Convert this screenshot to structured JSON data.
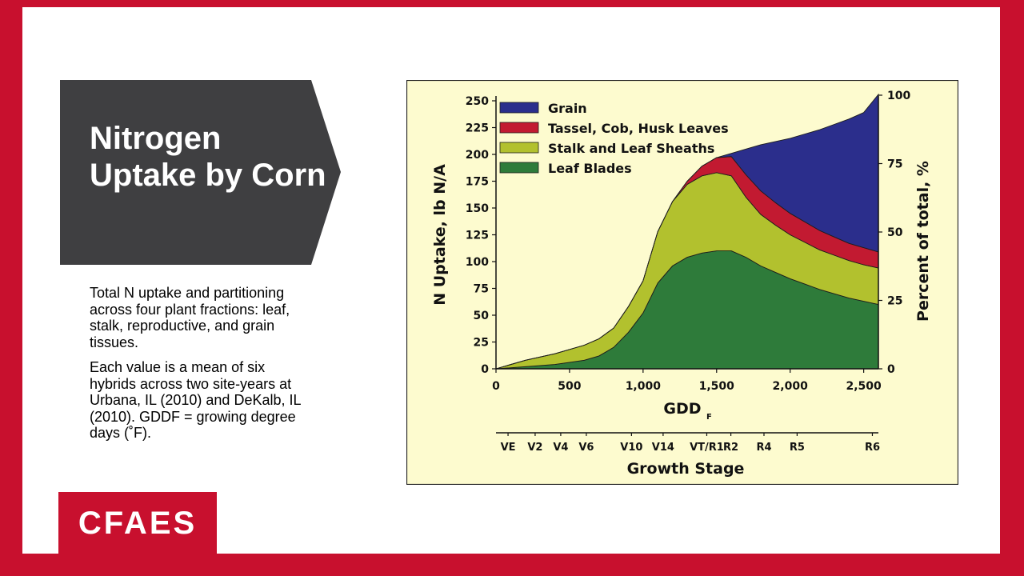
{
  "slide": {
    "title": "Nitrogen Uptake by Corn",
    "description": [
      "Total N uptake and partitioning across four plant fractions: leaf, stalk, reproductive, and grain tissues.",
      "Each value is a mean of six hybrids across two site-years at Urbana, IL (2010) and DeKalb, IL (2010). GDDF = growing degree days (˚F)."
    ],
    "logo_text": "CFAES"
  },
  "colors": {
    "frame": "#c8102e",
    "title_bg": "#3f3f41",
    "chart_bg": "#fdfbcf",
    "grain": "#2b2e8c",
    "tassel": "#c21a31",
    "stalk": "#b2c12e",
    "leaf": "#2e7b3a"
  },
  "chart_data": {
    "type": "area",
    "stacked": true,
    "x_label": "GDD",
    "x_label_subscript": "F",
    "y_label": "N Uptake, lb N/A",
    "y2_label": "Percent of total, %",
    "xlim": [
      0,
      2600
    ],
    "ylim": [
      0,
      250
    ],
    "x_ticks": [
      {
        "value": 0,
        "label": "0"
      },
      {
        "value": 500,
        "label": "500"
      },
      {
        "value": 1000,
        "label": "1,000"
      },
      {
        "value": 1500,
        "label": "1,500"
      },
      {
        "value": 2000,
        "label": "2,000"
      },
      {
        "value": 2500,
        "label": "2,500"
      }
    ],
    "y_ticks": [
      0,
      25,
      50,
      75,
      100,
      125,
      150,
      175,
      200,
      225,
      250
    ],
    "y2_ticks": [
      0,
      25,
      50,
      75,
      100
    ],
    "legend": [
      "Grain",
      "Tassel, Cob, Husk Leaves",
      "Stalk and Leaf Sheaths",
      "Leaf Blades"
    ],
    "x": [
      0,
      200,
      400,
      600,
      700,
      800,
      900,
      1000,
      1100,
      1200,
      1300,
      1400,
      1500,
      1600,
      1700,
      1800,
      1900,
      2000,
      2100,
      2200,
      2300,
      2400,
      2500,
      2600
    ],
    "series": [
      {
        "name": "Leaf Blades",
        "values": [
          0,
          2,
          4,
          8,
          12,
          20,
          34,
          52,
          80,
          96,
          104,
          108,
          110,
          110,
          104,
          96,
          90,
          84,
          79,
          74,
          70,
          66,
          63,
          60
        ]
      },
      {
        "name": "Stalk and Leaf Sheaths",
        "values": [
          0,
          6,
          10,
          14,
          16,
          18,
          24,
          30,
          48,
          60,
          68,
          72,
          73,
          70,
          56,
          48,
          44,
          41,
          39,
          37,
          36,
          35,
          34,
          34
        ]
      },
      {
        "name": "Tassel, Cob, Husk Leaves",
        "values": [
          0,
          0,
          0,
          0,
          0,
          0,
          0,
          0,
          0,
          0,
          3,
          9,
          14,
          18,
          21,
          22,
          21,
          20,
          19,
          18,
          17,
          16,
          16,
          15
        ]
      },
      {
        "name": "Grain",
        "values": [
          0,
          0,
          0,
          0,
          0,
          0,
          0,
          0,
          0,
          0,
          0,
          0,
          0,
          3,
          24,
          43,
          57,
          70,
          82,
          94,
          105,
          116,
          126,
          147
        ]
      }
    ],
    "growth_stage_label": "Growth Stage",
    "growth_stages": [
      {
        "label": "VE",
        "gdd": 40
      },
      {
        "label": "V2",
        "gdd": 130
      },
      {
        "label": "V4",
        "gdd": 215
      },
      {
        "label": "V6",
        "gdd": 300
      },
      {
        "label": "V10",
        "gdd": 450
      },
      {
        "label": "V14",
        "gdd": 555
      },
      {
        "label": "VT/R1",
        "gdd": 700
      },
      {
        "label": "R2",
        "gdd": 780
      },
      {
        "label": "R4",
        "gdd": 890
      },
      {
        "label": "R5",
        "gdd": 1000
      },
      {
        "label": "R6",
        "gdd": 1250
      }
    ],
    "growth_stage_range": [
      0,
      1270
    ]
  }
}
